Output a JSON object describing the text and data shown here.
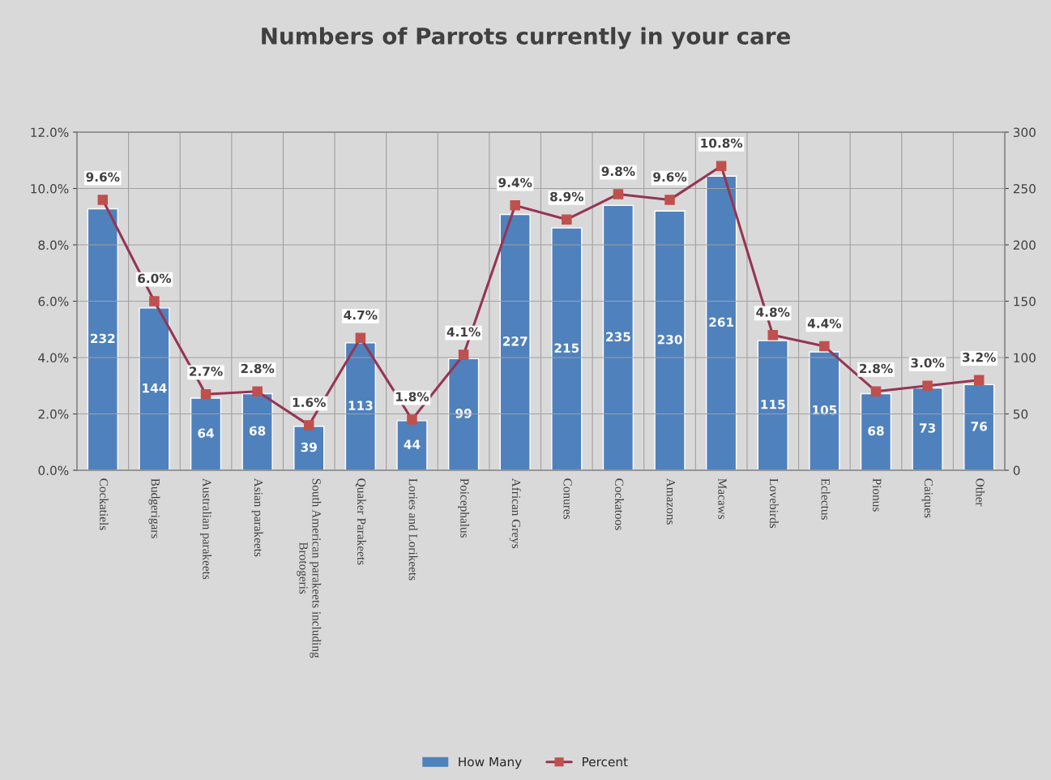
{
  "chart_data": {
    "type": "bar",
    "title": "Numbers of Parrots currently in your care",
    "categories": [
      "Cockatiels",
      "Budgerigars",
      "Australian parakeets",
      "Asian parakeets",
      "South American parakeets including Brotogeris",
      "Quaker Parakeets",
      "Lories and Lorikeets",
      "Poicephalus",
      "African Greys",
      "Conures",
      "Cockatoos",
      "Amazons",
      "Macaws",
      "Lovebirds",
      "Eclectus",
      "Pionus",
      "Caiques",
      "Other"
    ],
    "series": [
      {
        "name": "How Many",
        "axis": "y2",
        "color": "#4f81bd",
        "values": [
          232,
          144,
          64,
          68,
          39,
          113,
          44,
          99,
          227,
          215,
          235,
          230,
          261,
          115,
          105,
          68,
          73,
          76
        ],
        "value_labels": [
          "232",
          "144",
          "64",
          "68",
          "39",
          "113",
          "44",
          "99",
          "227",
          "215",
          "235",
          "230",
          "261",
          "115",
          "105",
          "68",
          "73",
          "76"
        ]
      },
      {
        "name": "Percent",
        "type": "line",
        "axis": "y",
        "color": "#953553",
        "marker": "square",
        "values": [
          9.6,
          6.0,
          2.7,
          2.8,
          1.6,
          4.7,
          1.8,
          4.1,
          9.4,
          8.9,
          9.8,
          9.6,
          10.8,
          4.8,
          4.4,
          2.8,
          3.0,
          3.2
        ],
        "value_labels": [
          "9.6%",
          "6.0%",
          "2.7%",
          "2.8%",
          "1.6%",
          "4.7%",
          "1.8%",
          "4.1%",
          "9.4%",
          "8.9%",
          "9.8%",
          "9.6%",
          "10.8%",
          "4.8%",
          "4.4%",
          "2.8%",
          "3.0%",
          "3.2%"
        ]
      }
    ],
    "ylim": [
      0,
      12
    ],
    "yticks": [
      {
        "value": 0,
        "label": "0.0%"
      },
      {
        "value": 2,
        "label": "2.0%"
      },
      {
        "value": 4,
        "label": "4.0%"
      },
      {
        "value": 6,
        "label": "6.0%"
      },
      {
        "value": 8,
        "label": "8.0%"
      },
      {
        "value": 10,
        "label": "10.0%"
      },
      {
        "value": 12,
        "label": "12.0%"
      }
    ],
    "y2lim": [
      0,
      300
    ],
    "y2ticks": [
      0,
      50,
      100,
      150,
      200,
      250,
      300
    ],
    "grid": true,
    "legend": "bottom"
  }
}
